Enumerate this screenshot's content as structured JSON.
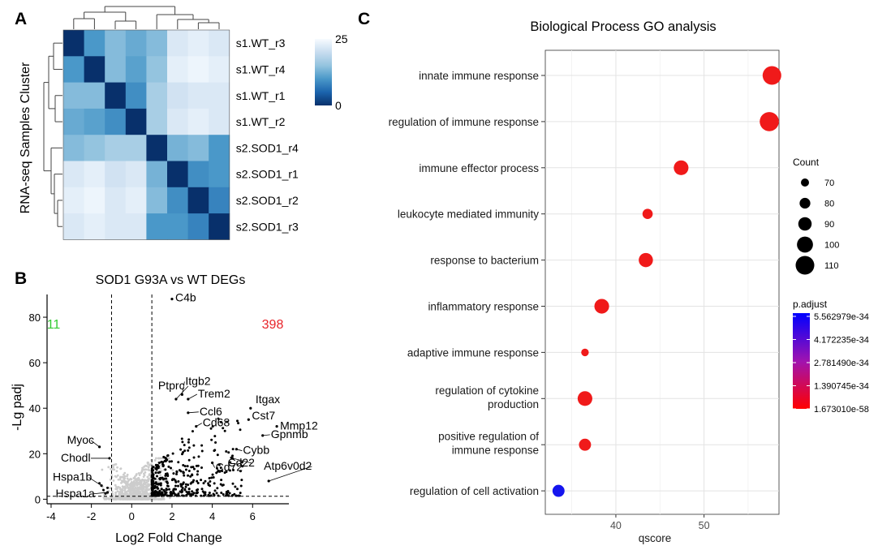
{
  "chart_data": [
    {
      "panel": "A",
      "type": "heatmap",
      "ylabel": "RNA-seq Samples Cluster",
      "samples": [
        "s1.WT_r3",
        "s1.WT_r4",
        "s1.WT_r1",
        "s1.WT_r2",
        "s2.SOD1_r4",
        "s2.SOD1_r1",
        "s2.SOD1_r2",
        "s2.SOD1_r3"
      ],
      "matrix": [
        [
          0,
          10,
          14,
          12,
          14,
          22,
          23,
          22
        ],
        [
          10,
          0,
          14,
          11,
          15,
          23,
          24,
          23
        ],
        [
          14,
          14,
          0,
          9,
          17,
          21,
          22,
          22
        ],
        [
          12,
          11,
          9,
          0,
          17,
          22,
          23,
          22
        ],
        [
          14,
          15,
          17,
          17,
          0,
          13,
          14,
          10
        ],
        [
          22,
          23,
          21,
          22,
          13,
          0,
          9,
          10
        ],
        [
          23,
          24,
          22,
          23,
          14,
          9,
          0,
          8
        ],
        [
          22,
          23,
          22,
          22,
          10,
          10,
          8,
          0
        ]
      ],
      "colorbar": {
        "min_label": "0",
        "max_label": "25",
        "low_color": "#08306b",
        "high_color": "#f7fbff"
      }
    },
    {
      "panel": "B",
      "type": "scatter",
      "title": "SOD1 G93A vs WT DEGs",
      "xlabel": "Log2 Fold Change",
      "ylabel": "-Lg padj",
      "xlim": [
        -4.2,
        7.8
      ],
      "ylim": [
        -2,
        90
      ],
      "xticks": [
        "-4",
        "-2",
        "0",
        "2",
        "4",
        "6"
      ],
      "xtick_values": [
        -4,
        -2,
        0,
        2,
        4,
        6
      ],
      "yticks": [
        "0",
        "20",
        "40",
        "60",
        "80"
      ],
      "ytick_values": [
        0,
        20,
        40,
        60,
        80
      ],
      "thresholds": {
        "fc": [
          -1,
          1
        ],
        "padj": 1.3
      },
      "down_count": "11",
      "up_count": "398",
      "down_color": "#33cc33",
      "up_color": "#e8242a",
      "labeled_genes": [
        {
          "gene": "C4b",
          "x": 2.0,
          "y": 88
        },
        {
          "gene": "Itgb2",
          "x": 2.5,
          "y": 46
        },
        {
          "gene": "Ptprc",
          "x": 2.2,
          "y": 44
        },
        {
          "gene": "Trem2",
          "x": 2.8,
          "y": 44
        },
        {
          "gene": "Ccl6",
          "x": 2.8,
          "y": 38
        },
        {
          "gene": "Itgax",
          "x": 5.9,
          "y": 40
        },
        {
          "gene": "Cst7",
          "x": 5.8,
          "y": 35
        },
        {
          "gene": "Mmp12",
          "x": 7.2,
          "y": 32
        },
        {
          "gene": "Cd68",
          "x": 3.2,
          "y": 32
        },
        {
          "gene": "Gpnmb",
          "x": 6.5,
          "y": 28
        },
        {
          "gene": "Cybb",
          "x": 5.2,
          "y": 22
        },
        {
          "gene": "Cd22",
          "x": 5.0,
          "y": 18
        },
        {
          "gene": "Cd72",
          "x": 4.0,
          "y": 16
        },
        {
          "gene": "Atp6v0d2",
          "x": 6.8,
          "y": 8
        },
        {
          "gene": "Myoc",
          "x": -1.6,
          "y": 23
        },
        {
          "gene": "Chodl",
          "x": -1.1,
          "y": 18
        },
        {
          "gene": "Hspa1b",
          "x": -1.5,
          "y": 6
        },
        {
          "gene": "Hspa1a",
          "x": -1.2,
          "y": 3
        }
      ]
    },
    {
      "panel": "C",
      "type": "scatter",
      "title": "Biological Process GO analysis",
      "xlabel": "qscore",
      "xlim": [
        32,
        58.5
      ],
      "xticks": [
        "40",
        "50"
      ],
      "xtick_values": [
        40,
        50
      ],
      "terms": [
        {
          "term": "innate immune response",
          "qscore": 57.7,
          "count": 110,
          "p_adjust": 1.67e-58
        },
        {
          "term": "regulation of immune response",
          "qscore": 57.4,
          "count": 112,
          "p_adjust": 1.67e-58
        },
        {
          "term": "immune effector process",
          "qscore": 47.4,
          "count": 95,
          "p_adjust": 1.67e-58
        },
        {
          "term": "leukocyte mediated immunity",
          "qscore": 43.6,
          "count": 78,
          "p_adjust": 1.67e-58
        },
        {
          "term": "response to bacterium",
          "qscore": 43.4,
          "count": 93,
          "p_adjust": 1.67e-58
        },
        {
          "term": "inflammatory response",
          "qscore": 38.4,
          "count": 95,
          "p_adjust": 1.67e-58
        },
        {
          "term": "adaptive immune response",
          "qscore": 36.5,
          "count": 68,
          "p_adjust": 1.67e-58
        },
        {
          "term": "regulation of cytokine production",
          "qscore": 36.5,
          "count": 95,
          "p_adjust": 1.67e-58
        },
        {
          "term": "positive regulation of immune response",
          "qscore": 36.5,
          "count": 85,
          "p_adjust": 1.67e-58
        },
        {
          "term": "regulation of cell activation",
          "qscore": 33.5,
          "count": 85,
          "p_adjust": 5.56e-34
        }
      ],
      "size_legend": {
        "title": "Count",
        "values": [
          70,
          80,
          90,
          100,
          110
        ]
      },
      "color_legend": {
        "title": "p.adjust",
        "labels": [
          "5.562979e-34",
          "4.172235e-34",
          "2.781490e-34",
          "1.390745e-34",
          "1.673010e-58"
        ],
        "colors": [
          "#0000ff",
          "#ff0000"
        ]
      }
    }
  ]
}
